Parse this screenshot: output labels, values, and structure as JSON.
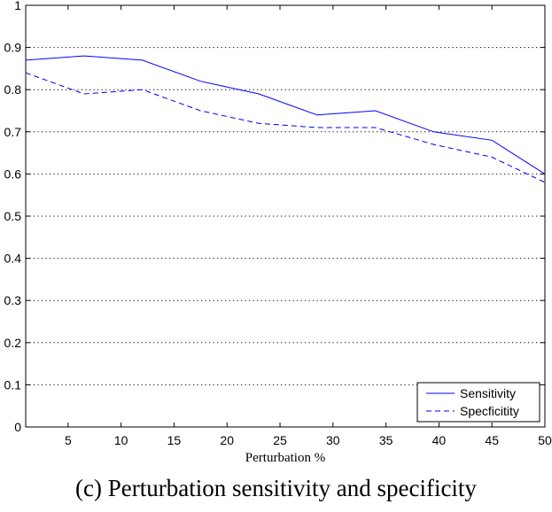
{
  "caption": "(c) Perturbation sensitivity and specificity",
  "chart_data": {
    "type": "line",
    "title": "",
    "xlabel": "Perturbation %",
    "ylabel": "",
    "xlim": [
      1,
      50
    ],
    "ylim": [
      0,
      1
    ],
    "xticks": [
      5,
      10,
      15,
      20,
      25,
      30,
      35,
      40,
      45,
      50
    ],
    "xtick_labels": [
      "5",
      "10",
      "15",
      "20",
      "25",
      "30",
      "35",
      "40",
      "45",
      "50"
    ],
    "yticks": [
      0,
      0.1,
      0.2,
      0.3,
      0.4,
      0.5,
      0.6,
      0.7,
      0.8,
      0.9,
      1
    ],
    "ytick_labels": [
      "0",
      "0.1",
      "0.2",
      "0.3",
      "0.4",
      "0.5",
      "0.6",
      "0.7",
      "0.8",
      "0.9",
      "1"
    ],
    "grid": "horizontal-dotted",
    "legend_position": "bottom-right",
    "x": [
      1,
      6.5,
      12,
      17.5,
      23,
      28.5,
      34,
      39.5,
      45,
      50
    ],
    "series": [
      {
        "name": "Sensitivity",
        "style": "solid",
        "color": "#0000ff",
        "values": [
          0.87,
          0.88,
          0.87,
          0.82,
          0.79,
          0.74,
          0.75,
          0.7,
          0.68,
          0.6
        ]
      },
      {
        "name": "Specficitity",
        "style": "dashed",
        "color": "#0000ff",
        "values": [
          0.84,
          0.79,
          0.8,
          0.75,
          0.72,
          0.71,
          0.71,
          0.67,
          0.64,
          0.58
        ]
      }
    ]
  }
}
